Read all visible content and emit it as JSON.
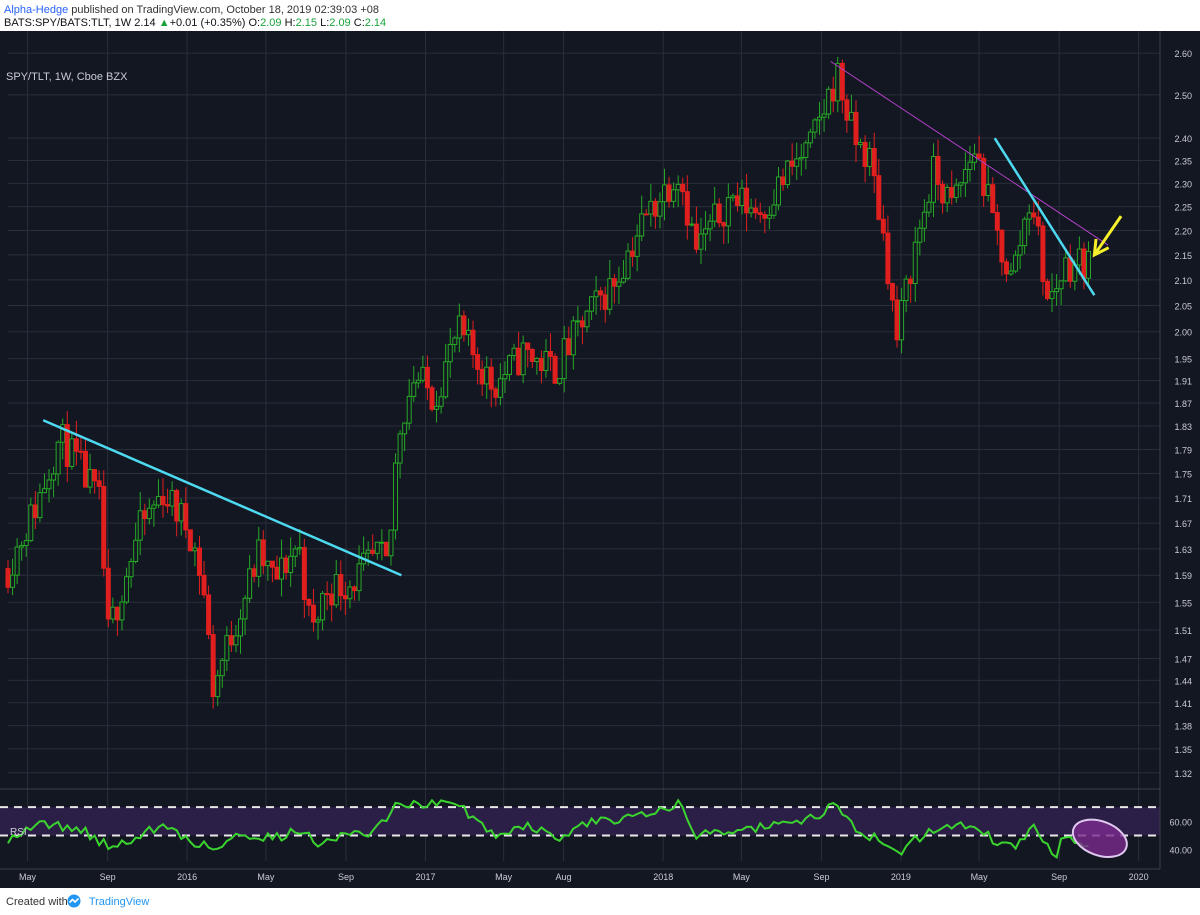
{
  "header": {
    "author": "Alpha-Hedge",
    "published_text": "published on TradingView.com, October 18, 2019 02:39:03 +08",
    "symbol": "BATS:SPY/BATS:TLT, 1W",
    "last": "2.14",
    "change": "+0.01 (+0.35%)",
    "o_label": "O:",
    "o_value": "2.09",
    "h_label": "H:",
    "h_value": "2.15",
    "l_label": "L:",
    "l_value": "2.09",
    "c_label": "C:",
    "c_value": "2.14"
  },
  "symbol_label": "SPY/TLT, 1W, Cboe BZX",
  "rsi_label": "RSI",
  "footer": {
    "created_with": "Created with",
    "brand": "TradingView"
  },
  "colors": {
    "background": "#131722",
    "grid": "#2a2e39",
    "up_candle": "#26a826",
    "down_candle": "#e01f1f",
    "trendline_cyan": "#4dd9f0",
    "trendline_magenta": "#b040c8",
    "arrow_yellow": "#f5f02a",
    "rsi_line": "#3bd42f",
    "rsi_band": "#2b1f47",
    "rsi_ellipse": "#e0c8f0"
  },
  "chart_data": [
    {
      "type": "candlestick",
      "title": "SPY/TLT, 1W, Cboe BZX",
      "y_scale": "log",
      "ylim": [
        1.3,
        2.63
      ],
      "y_ticks": [
        "2.60",
        "2.50",
        "2.40",
        "2.35",
        "2.30",
        "2.25",
        "2.20",
        "2.15",
        "2.10",
        "2.05",
        "2.00",
        "1.95",
        "1.91",
        "1.87",
        "1.83",
        "1.79",
        "1.75",
        "1.71",
        "1.67",
        "1.63",
        "1.59",
        "1.55",
        "1.51",
        "1.47",
        "1.44",
        "1.41",
        "1.38",
        "1.35",
        "1.32"
      ],
      "x_ticks": [
        "May",
        "Sep",
        "2016",
        "May",
        "Sep",
        "2017",
        "May",
        "Aug",
        "2018",
        "May",
        "Sep",
        "2019",
        "May",
        "Sep",
        "2020"
      ],
      "grid": true,
      "series": [
        {
          "anchors": [
            [
              "2015-04-01",
              1.6
            ],
            [
              "2015-05-15",
              1.7
            ],
            [
              "2015-06-20",
              1.81
            ],
            [
              "2015-07-20",
              1.76
            ],
            [
              "2015-08-20",
              1.7
            ],
            [
              "2015-09-01",
              1.5
            ],
            [
              "2015-10-20",
              1.66
            ],
            [
              "2015-11-25",
              1.72
            ],
            [
              "2016-01-05",
              1.66
            ],
            [
              "2016-01-25",
              1.58
            ],
            [
              "2016-02-10",
              1.43
            ],
            [
              "2016-03-15",
              1.52
            ],
            [
              "2016-04-20",
              1.62
            ],
            [
              "2016-05-15",
              1.58
            ],
            [
              "2016-06-20",
              1.64
            ],
            [
              "2016-07-10",
              1.5
            ],
            [
              "2016-08-01",
              1.57
            ],
            [
              "2016-09-10",
              1.58
            ],
            [
              "2016-10-20",
              1.62
            ],
            [
              "2016-11-05",
              1.6
            ],
            [
              "2016-11-20",
              1.82
            ],
            [
              "2016-12-15",
              1.92
            ],
            [
              "2017-01-15",
              1.88
            ],
            [
              "2017-02-20",
              2.0
            ],
            [
              "2017-04-15",
              1.9
            ],
            [
              "2017-06-01",
              1.96
            ],
            [
              "2017-07-20",
              1.93
            ],
            [
              "2017-09-01",
              2.02
            ],
            [
              "2017-10-20",
              2.1
            ],
            [
              "2017-12-01",
              2.22
            ],
            [
              "2018-01-25",
              2.33
            ],
            [
              "2018-02-20",
              2.16
            ],
            [
              "2018-04-15",
              2.27
            ],
            [
              "2018-06-01",
              2.24
            ],
            [
              "2018-07-15",
              2.33
            ],
            [
              "2018-08-15",
              2.38
            ],
            [
              "2018-09-25",
              2.55
            ],
            [
              "2018-10-20",
              2.4
            ],
            [
              "2018-11-15",
              2.35
            ],
            [
              "2018-12-10",
              2.15
            ],
            [
              "2018-12-25",
              1.98
            ],
            [
              "2019-01-20",
              2.15
            ],
            [
              "2019-02-20",
              2.32
            ],
            [
              "2019-03-20",
              2.25
            ],
            [
              "2019-04-25",
              2.38
            ],
            [
              "2019-05-25",
              2.2
            ],
            [
              "2019-06-20",
              2.1
            ],
            [
              "2019-07-20",
              2.28
            ],
            [
              "2019-08-15",
              2.05
            ],
            [
              "2019-09-10",
              2.13
            ],
            [
              "2019-10-20",
              2.14
            ]
          ]
        }
      ]
    },
    {
      "type": "line",
      "title": "RSI",
      "ylim": [
        32,
        80
      ],
      "y_ticks": [
        "60.00",
        "40.00"
      ],
      "levels": [
        70,
        50
      ],
      "series": [
        {
          "anchors": [
            [
              "2015-04-01",
              48
            ],
            [
              "2015-05-20",
              58
            ],
            [
              "2015-07-20",
              55
            ],
            [
              "2015-09-05",
              41
            ],
            [
              "2015-10-25",
              52
            ],
            [
              "2015-11-25",
              56
            ],
            [
              "2016-01-20",
              44
            ],
            [
              "2016-02-15",
              40
            ],
            [
              "2016-03-20",
              52
            ],
            [
              "2016-05-15",
              48
            ],
            [
              "2016-06-20",
              54
            ],
            [
              "2016-07-20",
              45
            ],
            [
              "2016-08-20",
              50
            ],
            [
              "2016-10-15",
              52
            ],
            [
              "2016-11-20",
              74
            ],
            [
              "2016-12-20",
              72
            ],
            [
              "2017-02-20",
              72
            ],
            [
              "2017-04-15",
              50
            ],
            [
              "2017-06-01",
              58
            ],
            [
              "2017-07-25",
              48
            ],
            [
              "2017-09-15",
              60
            ],
            [
              "2017-10-25",
              62
            ],
            [
              "2017-12-15",
              68
            ],
            [
              "2018-01-25",
              72
            ],
            [
              "2018-02-20",
              50
            ],
            [
              "2018-04-15",
              54
            ],
            [
              "2018-06-01",
              56
            ],
            [
              "2018-07-20",
              58
            ],
            [
              "2018-08-25",
              64
            ],
            [
              "2018-09-25",
              72
            ],
            [
              "2018-10-25",
              54
            ],
            [
              "2018-11-25",
              48
            ],
            [
              "2018-12-25",
              36
            ],
            [
              "2019-01-25",
              48
            ],
            [
              "2019-03-05",
              56
            ],
            [
              "2019-04-25",
              58
            ],
            [
              "2019-05-25",
              45
            ],
            [
              "2019-06-25",
              42
            ],
            [
              "2019-07-25",
              56
            ],
            [
              "2019-08-25",
              35
            ],
            [
              "2019-09-10",
              50
            ],
            [
              "2019-10-01",
              44
            ],
            [
              "2019-10-20",
              46
            ]
          ]
        }
      ]
    }
  ],
  "annotations": [
    {
      "type": "trendline",
      "color": "cyan",
      "from": [
        "2015-05-25",
        1.84
      ],
      "to": [
        "2016-11-25",
        1.59
      ]
    },
    {
      "type": "trendline",
      "color": "magenta",
      "from": [
        "2018-09-15",
        2.58
      ],
      "to": [
        "2019-11-15",
        2.17
      ]
    },
    {
      "type": "trendline",
      "color": "cyan",
      "from": [
        "2019-05-25",
        2.4
      ],
      "to": [
        "2019-10-25",
        2.07
      ]
    },
    {
      "type": "arrow",
      "color": "yellow",
      "from": [
        "2019-12-05",
        2.23
      ],
      "to": [
        "2019-10-25",
        2.15
      ]
    },
    {
      "type": "ellipse",
      "panel": "RSI",
      "center": [
        "2019-10-15",
        48
      ]
    }
  ]
}
